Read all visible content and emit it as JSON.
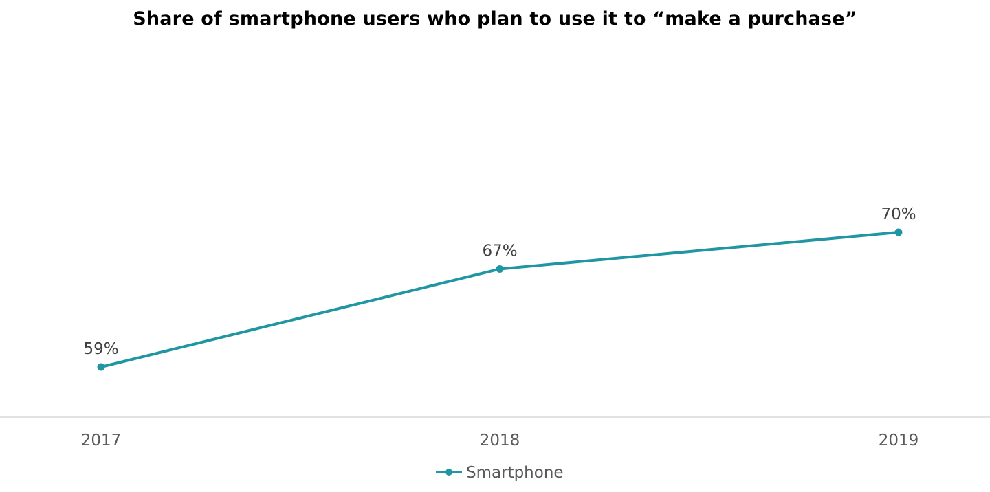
{
  "chart_data": {
    "type": "line",
    "title": "Share of smartphone users who plan to use it to “make a purchase”",
    "categories": [
      "2017",
      "2018",
      "2019"
    ],
    "series": [
      {
        "name": "Smartphone",
        "values": [
          59,
          67,
          70
        ],
        "labels": [
          "59%",
          "67%",
          "70%"
        ],
        "color": "#2196A3"
      }
    ],
    "ylim": [
      50,
      80
    ],
    "grid": false,
    "legend_position": "bottom",
    "axis_color": "#d9d9d9"
  }
}
